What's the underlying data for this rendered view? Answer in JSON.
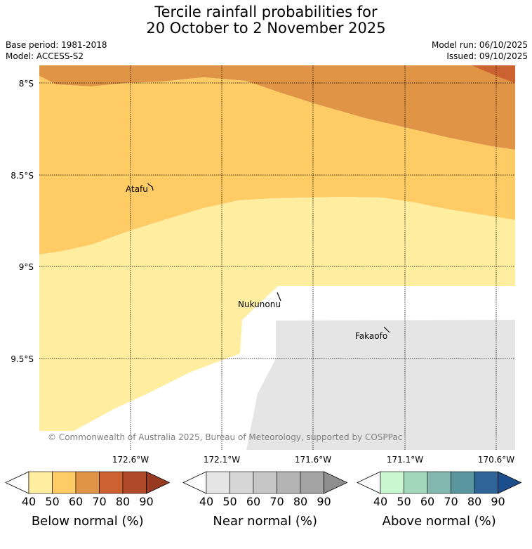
{
  "title": {
    "line1": "Tercile rainfall probabilities for",
    "line2": "20 October to 2 November 2025"
  },
  "info": {
    "base_period": "Base period: 1981-2018",
    "model": "Model: ACCESS-S2",
    "model_run": "Model run: 06/10/2025",
    "issued": "Issued: 09/10/2025"
  },
  "map": {
    "lat_labels": [
      "8°S",
      "8.5°S",
      "9°S",
      "9.5°S"
    ],
    "lon_labels": [
      "172.6°W",
      "172.1°W",
      "171.6°W",
      "171.1°W",
      "170.6°W"
    ],
    "places": [
      "Atafu",
      "Nukunonu",
      "Fakaofo"
    ],
    "copyright": "© Commonwealth of Australia 2025, Bureau of Meteorology, supported by COSPPac"
  },
  "colorbars": [
    {
      "label": "Below normal (%)",
      "ticks": [
        "40",
        "50",
        "60",
        "70",
        "80",
        "90"
      ],
      "colors": [
        "#ffeda0",
        "#fecb65",
        "#e09446",
        "#cc6231",
        "#b04a29",
        "#983a21"
      ]
    },
    {
      "label": "Near normal (%)",
      "ticks": [
        "40",
        "50",
        "60",
        "70",
        "80",
        "90"
      ],
      "colors": [
        "#e5e5e5",
        "#d6d6d6",
        "#c6c6c6",
        "#b4b4b4",
        "#a4a4a4",
        "#8e8e8e"
      ]
    },
    {
      "label": "Above normal (%)",
      "ticks": [
        "40",
        "50",
        "60",
        "70",
        "80",
        "90"
      ],
      "colors": [
        "#c8f7d0",
        "#a3d8bd",
        "#82b8b0",
        "#5a96a0",
        "#2e6497",
        "#1c4e8c"
      ]
    }
  ]
}
